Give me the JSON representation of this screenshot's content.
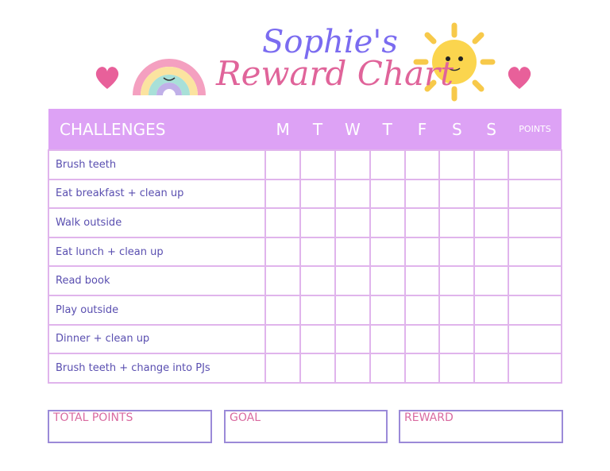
{
  "title": {
    "line1": "Sophie's",
    "line2": "Reward Chart"
  },
  "table": {
    "header": {
      "challenges": "CHALLENGES",
      "days": [
        "M",
        "T",
        "W",
        "T",
        "F",
        "S",
        "S"
      ],
      "points": "POINTS"
    },
    "rows": [
      "Brush teeth",
      "Eat breakfast + clean up",
      "Walk outside",
      "Eat lunch + clean up",
      "Read book",
      "Play outside",
      "Dinner + clean up",
      "Brush teeth + change into PJs"
    ]
  },
  "footer": {
    "total_points": "TOTAL POINTS",
    "goal": "GOAL",
    "reward": "REWARD"
  },
  "colors": {
    "header": "#dda2f5",
    "title_purple": "#7b6cf0",
    "title_pink": "#e0649a",
    "grid": "#e0b4ec"
  },
  "icons": [
    "heart-icon",
    "rainbow-icon",
    "sun-icon",
    "heart-icon"
  ]
}
